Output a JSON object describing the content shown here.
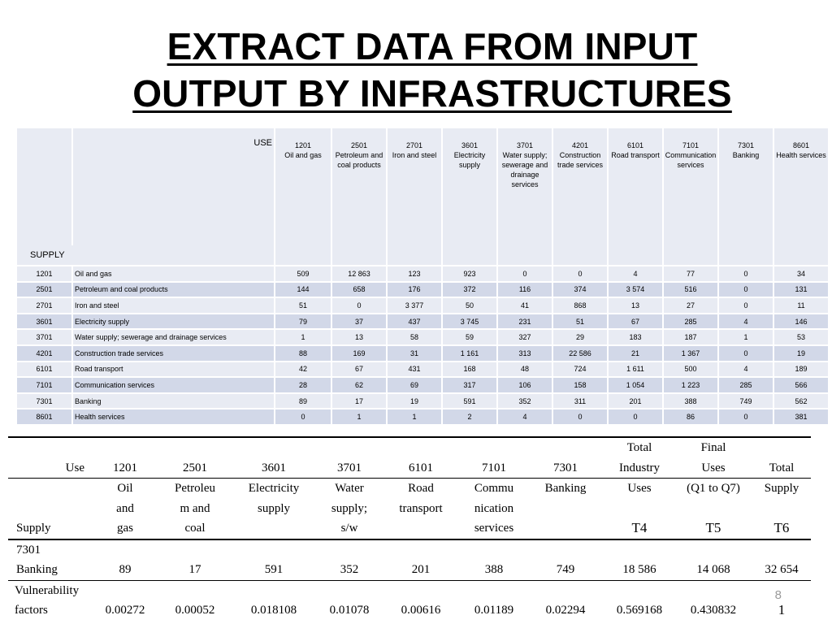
{
  "title": {
    "line1": "EXTRACT DATA FROM INPUT",
    "line2": "OUTPUT BY INFRASTRUCTURES"
  },
  "io_table": {
    "use_label": "USE",
    "supply_label": "SUPPLY",
    "columns": [
      {
        "code": "1201",
        "name": "Oil and gas"
      },
      {
        "code": "2501",
        "name": "Petroleum and coal products"
      },
      {
        "code": "2701",
        "name": "Iron and steel"
      },
      {
        "code": "3601",
        "name": "Electricity supply"
      },
      {
        "code": "3701",
        "name": "Water supply; sewerage and drainage services"
      },
      {
        "code": "4201",
        "name": "Construction trade services"
      },
      {
        "code": "6101",
        "name": "Road transport"
      },
      {
        "code": "7101",
        "name": "Communication services"
      },
      {
        "code": "7301",
        "name": "Banking"
      },
      {
        "code": "8601",
        "name": "Health services"
      }
    ],
    "rows": [
      {
        "code": "1201",
        "name": "Oil and gas",
        "values": [
          "509",
          "12 863",
          "123",
          "923",
          "0",
          "0",
          "4",
          "77",
          "0",
          "34"
        ]
      },
      {
        "code": "2501",
        "name": "Petroleum and coal products",
        "values": [
          "144",
          "658",
          "176",
          "372",
          "116",
          "374",
          "3 574",
          "516",
          "0",
          "131"
        ]
      },
      {
        "code": "2701",
        "name": "Iron and steel",
        "values": [
          "51",
          "0",
          "3 377",
          "50",
          "41",
          "868",
          "13",
          "27",
          "0",
          "11"
        ]
      },
      {
        "code": "3601",
        "name": "Electricity supply",
        "values": [
          "79",
          "37",
          "437",
          "3 745",
          "231",
          "51",
          "67",
          "285",
          "4",
          "146"
        ]
      },
      {
        "code": "3701",
        "name": "Water supply; sewerage and drainage services",
        "values": [
          "1",
          "13",
          "58",
          "59",
          "327",
          "29",
          "183",
          "187",
          "1",
          "53"
        ]
      },
      {
        "code": "4201",
        "name": "Construction trade services",
        "values": [
          "88",
          "169",
          "31",
          "1 161",
          "313",
          "22 586",
          "21",
          "1 367",
          "0",
          "19"
        ]
      },
      {
        "code": "6101",
        "name": "Road transport",
        "values": [
          "42",
          "67",
          "431",
          "168",
          "48",
          "724",
          "1 611",
          "500",
          "4",
          "189"
        ]
      },
      {
        "code": "7101",
        "name": "Communication services",
        "values": [
          "28",
          "62",
          "69",
          "317",
          "106",
          "158",
          "1 054",
          "1 223",
          "285",
          "566"
        ]
      },
      {
        "code": "7301",
        "name": "Banking",
        "values": [
          "89",
          "17",
          "19",
          "591",
          "352",
          "311",
          "201",
          "388",
          "749",
          "562"
        ]
      },
      {
        "code": "8601",
        "name": "Health services",
        "values": [
          "0",
          "1",
          "1",
          "2",
          "4",
          "0",
          "0",
          "86",
          "0",
          "381"
        ]
      }
    ]
  },
  "bottom_table": {
    "use_label": "Use",
    "supply_label": "Supply",
    "codes": [
      "1201",
      "2501",
      "3601",
      "3701",
      "6101",
      "7101",
      "7301"
    ],
    "name_row1": [
      "Oil",
      "Petroleu",
      "Electricity",
      "Water",
      "Road",
      "Commu",
      "Banking"
    ],
    "name_row2": [
      "and",
      "m and",
      "supply",
      "supply;",
      "transport",
      "nication",
      ""
    ],
    "name_row3": [
      "gas",
      "coal",
      "",
      "s/w",
      "",
      "services",
      ""
    ],
    "total_industry": {
      "line1": "Total",
      "line2": "Industry",
      "line3": "Uses",
      "code": "T4"
    },
    "final_uses": {
      "line1": "Final",
      "line2": "Uses",
      "line3": "(Q1 to Q7)",
      "code": "T5"
    },
    "total_supply": {
      "line1": "Total",
      "line2": "Supply",
      "code": "T6"
    },
    "banking_row": {
      "code": "7301",
      "label": "Banking",
      "values": [
        "89",
        "17",
        "591",
        "352",
        "201",
        "388",
        "749",
        "18 586",
        "14 068",
        "32 654"
      ]
    },
    "vulnerability_row": {
      "label1": "Vulnerability",
      "label2": "factors",
      "values": [
        "0.00272",
        "0.00052",
        "0.018108",
        "0.01078",
        "0.00616",
        "0.01189",
        "0.02294",
        "0.569168",
        "0.430832",
        "1"
      ]
    }
  },
  "page_number": "8"
}
